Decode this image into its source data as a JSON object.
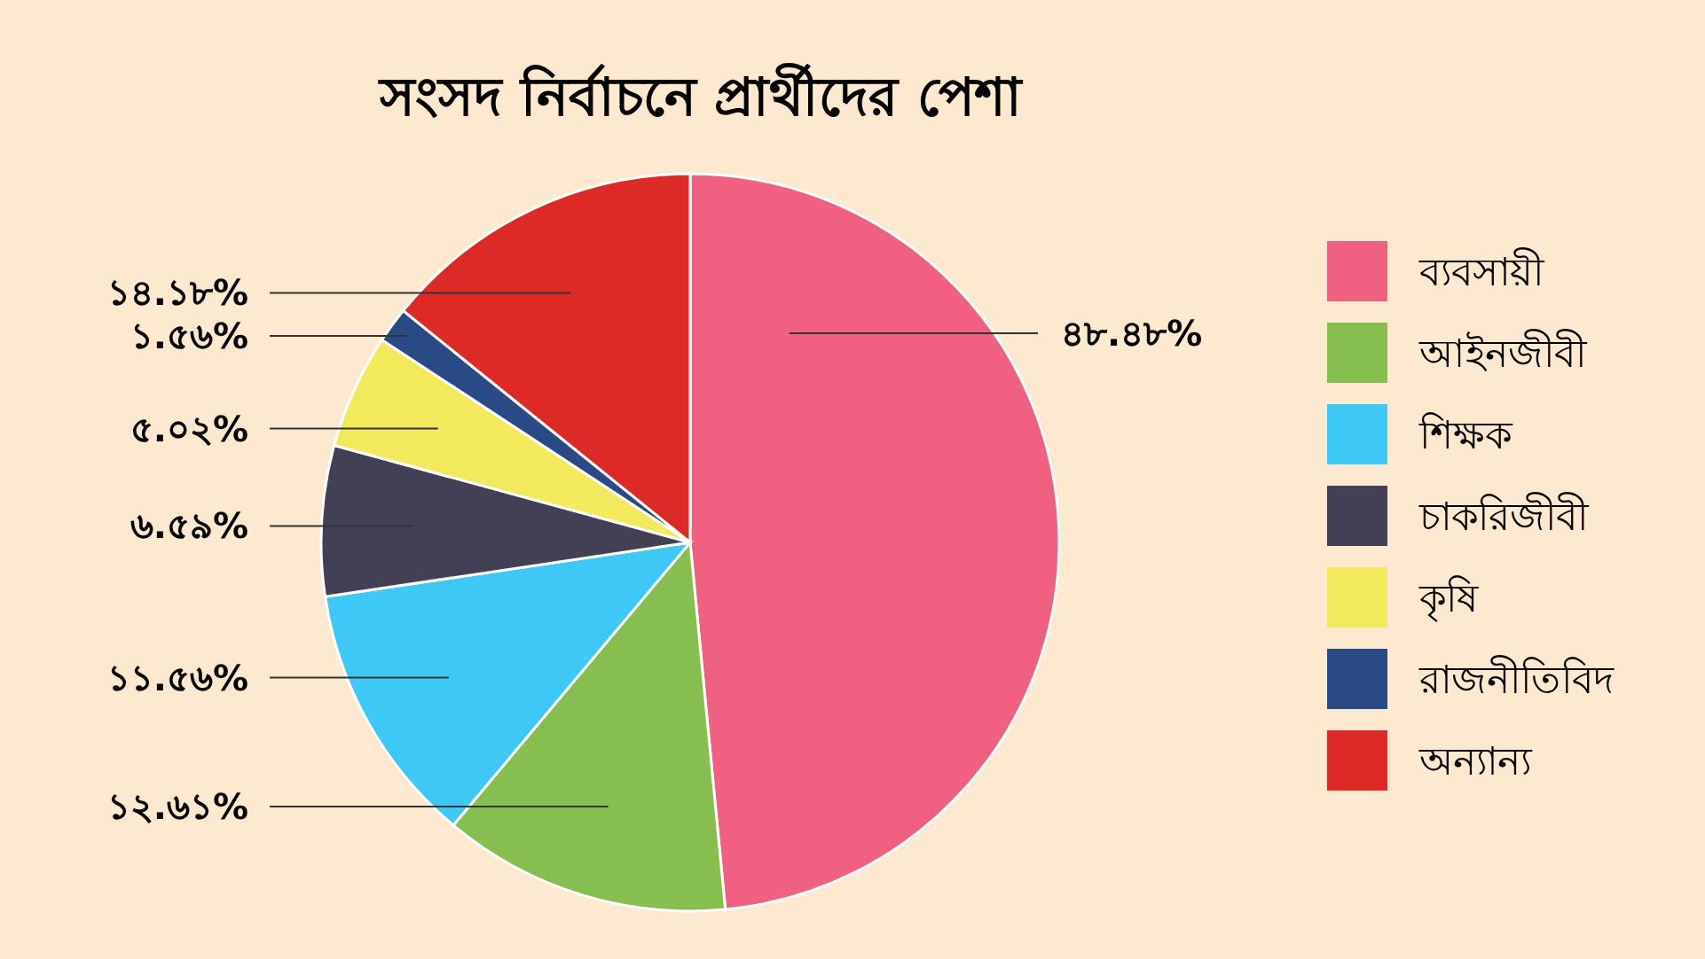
{
  "chart_data": {
    "type": "pie",
    "title": "সংসদ নির্বাচনে প্রার্থীদের পেশা",
    "categories": [
      "ব্যবসায়ী",
      "আইনজীবী",
      "শিক্ষক",
      "চাকরিজীবী",
      "কৃষি",
      "রাজনীতিবিদ",
      "অন্যান্য"
    ],
    "values": [
      48.48,
      12.61,
      11.56,
      6.59,
      5.02,
      1.56,
      14.18
    ],
    "value_labels": [
      "৪৮.৪৮%",
      "১২.৬১%",
      "১১.৫৬%",
      "৬.৫৯%",
      "৫.০২%",
      "১.৫৬%",
      "১৪.১৮%"
    ],
    "colors": [
      "#f06080",
      "#86bf50",
      "#3ec8f5",
      "#433f55",
      "#f2ea5c",
      "#2a4a85",
      "#dd2a27"
    ],
    "legend": "right"
  }
}
